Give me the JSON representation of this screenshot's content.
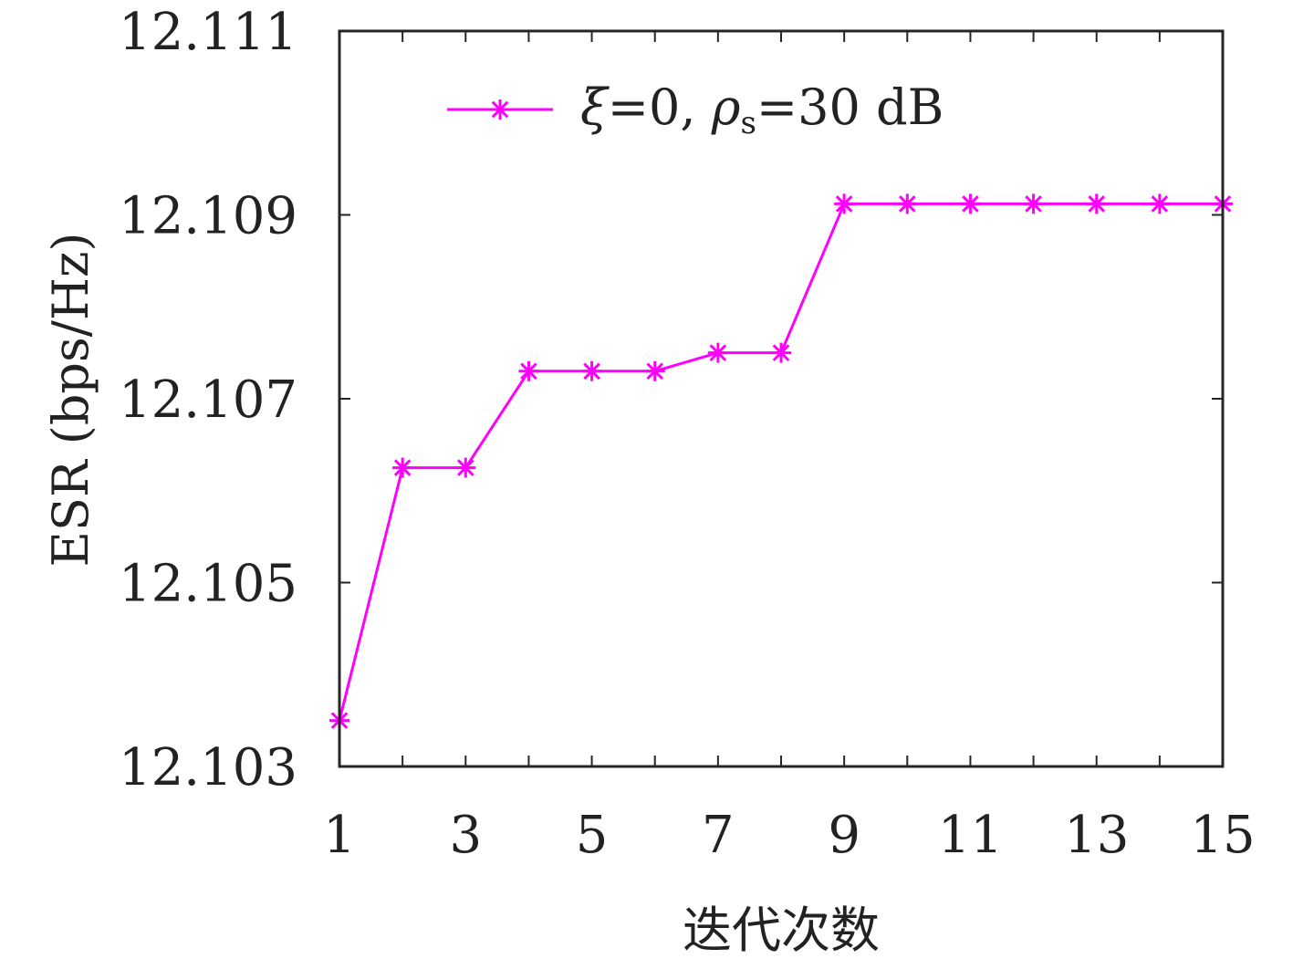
{
  "chart_data": {
    "type": "line",
    "xlabel": "迭代次数",
    "ylabel": "ESR (bps/Hz)",
    "x": [
      1,
      2,
      3,
      4,
      5,
      6,
      7,
      8,
      9,
      10,
      11,
      12,
      13,
      14,
      15
    ],
    "series": [
      {
        "name": "ξ=0, ρs=30 dB",
        "name_parts": {
          "xi": "ξ",
          "eq1": "=0, ",
          "rho": "ρ",
          "sub": "s",
          "eq2": "=30 dB"
        },
        "color": "#ff00ff",
        "marker": "asterisk",
        "values": [
          12.1035,
          12.10625,
          12.10625,
          12.1073,
          12.1073,
          12.1073,
          12.1075,
          12.1075,
          12.10912,
          12.10912,
          12.10912,
          12.10912,
          12.10912,
          12.10912,
          12.10912
        ]
      }
    ],
    "xlim": [
      1,
      15
    ],
    "ylim": [
      12.103,
      12.111
    ],
    "xticks": [
      "1",
      "3",
      "5",
      "7",
      "9",
      "11",
      "13",
      "15"
    ],
    "yticks": [
      "12.103",
      "12.105",
      "12.107",
      "12.109",
      "12.111"
    ],
    "legend_position": "top",
    "grid": false
  }
}
